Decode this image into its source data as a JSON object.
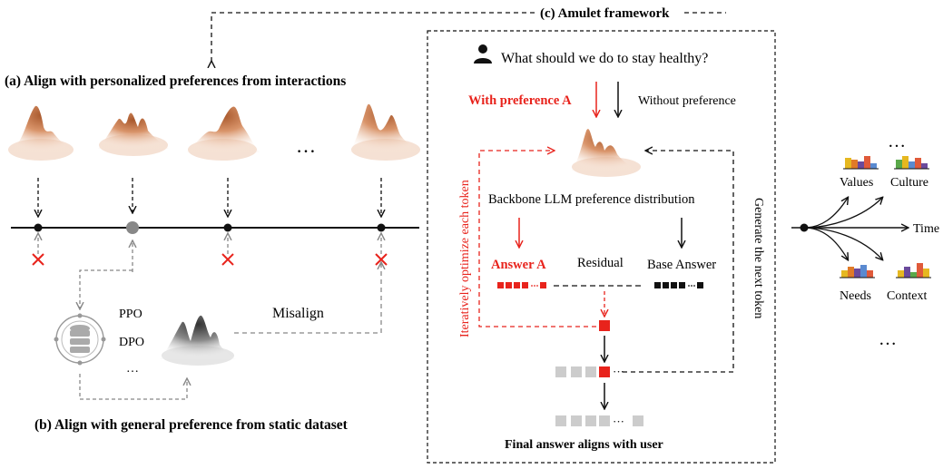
{
  "framework_title": "(c) Amulet framework",
  "panel_a": {
    "title": "(a) Align with personalized preferences from interactions",
    "ellipsis": "…"
  },
  "panel_b": {
    "title": "(b) Align with general preference from static dataset",
    "methods": [
      "PPO",
      "DPO",
      "…"
    ],
    "misalign_label": "Misalign",
    "database_icon": "database-icon"
  },
  "panel_c": {
    "question": "What should we do to stay healthy?",
    "user_icon": "user-icon",
    "with_pref_label": "With preference A",
    "without_pref_label": "Without preference",
    "backbone_label": "Backbone LLM preference distribution",
    "answer_a_label": "Answer A",
    "residual_label": "Residual",
    "base_answer_label": "Base Answer",
    "iterate_label": "Iteratively optimize each token",
    "generate_label": "Generate the next token",
    "final_label": "Final answer aligns with user",
    "ellipsis": "···"
  },
  "panel_d": {
    "labels": [
      "Values",
      "Culture",
      "Needs",
      "Context"
    ],
    "time_label": "Time",
    "ellipsis": "…"
  },
  "colors": {
    "accent_red": "#e8231c",
    "peak_orange": "#c5744a",
    "token_gray": "#cccccc",
    "token_black": "#111111"
  }
}
